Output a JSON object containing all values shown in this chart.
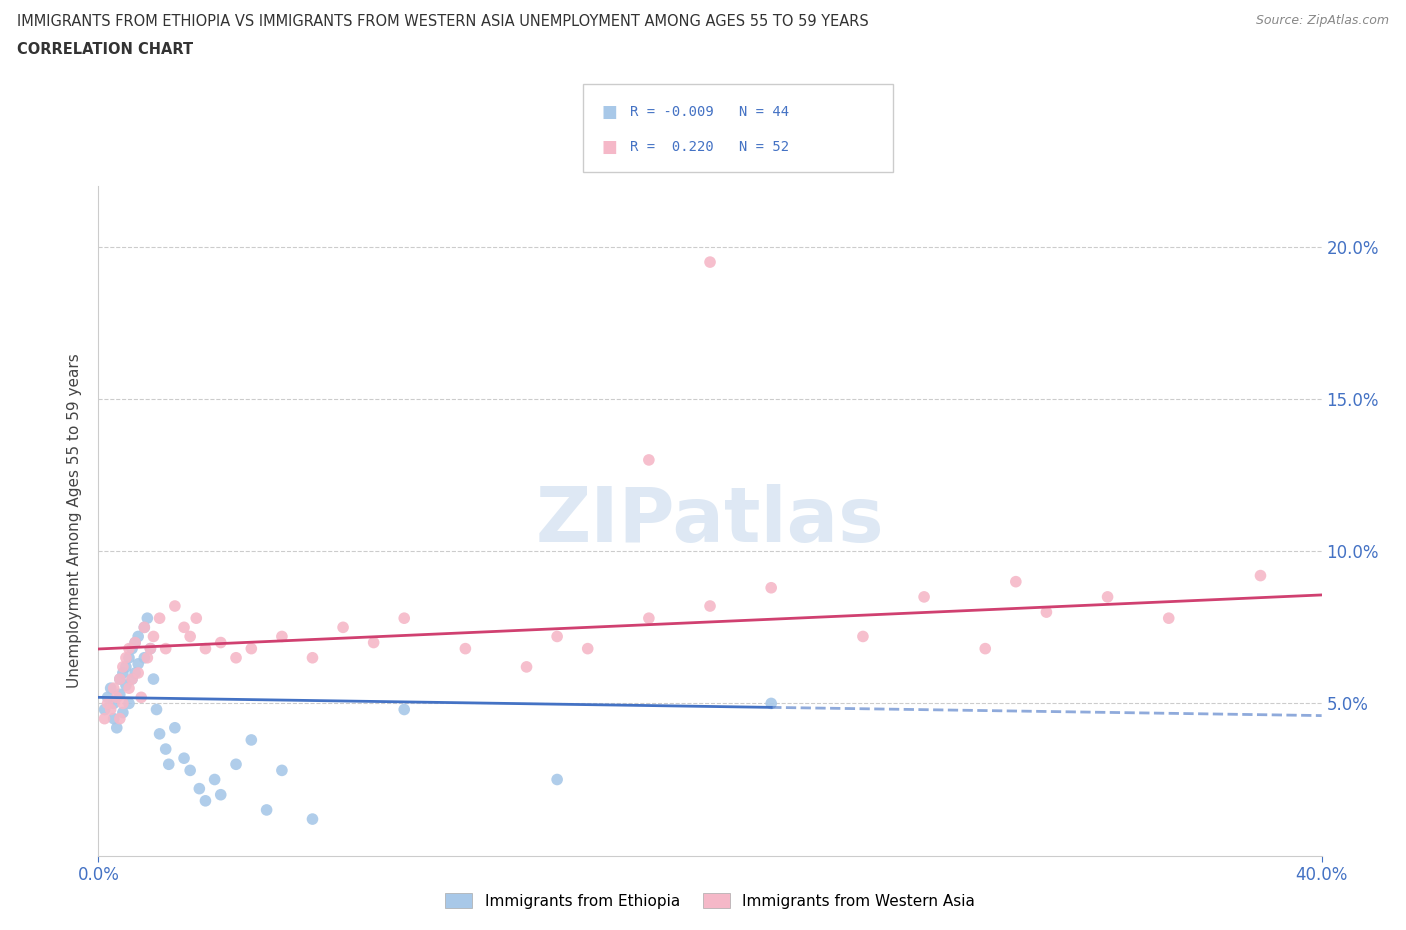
{
  "title_line1": "IMMIGRANTS FROM ETHIOPIA VS IMMIGRANTS FROM WESTERN ASIA UNEMPLOYMENT AMONG AGES 55 TO 59 YEARS",
  "title_line2": "CORRELATION CHART",
  "source": "Source: ZipAtlas.com",
  "ylabel": "Unemployment Among Ages 55 to 59 years",
  "x_min": 0.0,
  "x_max": 0.4,
  "y_min": 0.0,
  "y_max": 0.22,
  "yticks": [
    0.05,
    0.1,
    0.15,
    0.2
  ],
  "ytick_labels": [
    "5.0%",
    "10.0%",
    "15.0%",
    "20.0%"
  ],
  "r_ethiopia": -0.009,
  "n_ethiopia": 44,
  "r_western_asia": 0.22,
  "n_western_asia": 52,
  "color_ethiopia": "#a8c8e8",
  "color_western_asia": "#f5b8c8",
  "line_color_ethiopia": "#4472c4",
  "line_color_western_asia": "#d04070",
  "watermark_text": "ZIPatlas",
  "ethiopia_x": [
    0.002,
    0.003,
    0.004,
    0.005,
    0.005,
    0.006,
    0.007,
    0.007,
    0.008,
    0.008,
    0.009,
    0.009,
    0.01,
    0.01,
    0.011,
    0.011,
    0.012,
    0.012,
    0.013,
    0.013,
    0.015,
    0.015,
    0.016,
    0.017,
    0.018,
    0.019,
    0.02,
    0.022,
    0.023,
    0.025,
    0.028,
    0.03,
    0.033,
    0.035,
    0.038,
    0.04,
    0.045,
    0.05,
    0.055,
    0.06,
    0.07,
    0.1,
    0.15,
    0.22
  ],
  "ethiopia_y": [
    0.048,
    0.052,
    0.055,
    0.045,
    0.05,
    0.042,
    0.058,
    0.053,
    0.06,
    0.047,
    0.062,
    0.056,
    0.065,
    0.05,
    0.068,
    0.058,
    0.07,
    0.06,
    0.072,
    0.063,
    0.075,
    0.065,
    0.078,
    0.068,
    0.058,
    0.048,
    0.04,
    0.035,
    0.03,
    0.042,
    0.032,
    0.028,
    0.022,
    0.018,
    0.025,
    0.02,
    0.03,
    0.038,
    0.015,
    0.028,
    0.012,
    0.048,
    0.025,
    0.05
  ],
  "western_asia_x": [
    0.002,
    0.003,
    0.004,
    0.005,
    0.006,
    0.007,
    0.007,
    0.008,
    0.008,
    0.009,
    0.01,
    0.01,
    0.011,
    0.012,
    0.013,
    0.014,
    0.015,
    0.016,
    0.017,
    0.018,
    0.02,
    0.022,
    0.025,
    0.028,
    0.03,
    0.032,
    0.035,
    0.04,
    0.045,
    0.05,
    0.06,
    0.07,
    0.08,
    0.09,
    0.1,
    0.12,
    0.14,
    0.15,
    0.16,
    0.18,
    0.2,
    0.22,
    0.25,
    0.27,
    0.29,
    0.3,
    0.31,
    0.33,
    0.35,
    0.38,
    0.2,
    0.18
  ],
  "western_asia_y": [
    0.045,
    0.05,
    0.048,
    0.055,
    0.052,
    0.058,
    0.045,
    0.062,
    0.05,
    0.065,
    0.055,
    0.068,
    0.058,
    0.07,
    0.06,
    0.052,
    0.075,
    0.065,
    0.068,
    0.072,
    0.078,
    0.068,
    0.082,
    0.075,
    0.072,
    0.078,
    0.068,
    0.07,
    0.065,
    0.068,
    0.072,
    0.065,
    0.075,
    0.07,
    0.078,
    0.068,
    0.062,
    0.072,
    0.068,
    0.078,
    0.082,
    0.088,
    0.072,
    0.085,
    0.068,
    0.09,
    0.08,
    0.085,
    0.078,
    0.092,
    0.195,
    0.13
  ]
}
